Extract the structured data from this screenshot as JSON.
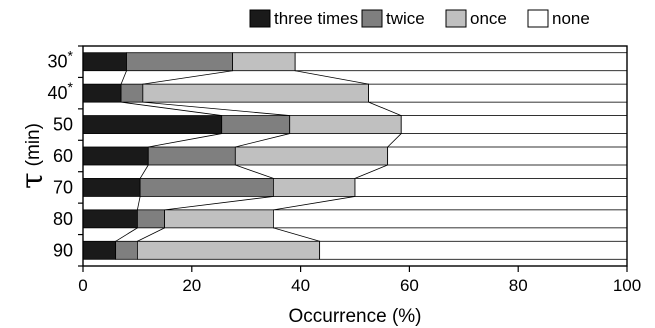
{
  "chart_data": {
    "type": "bar",
    "orientation": "horizontal",
    "stacked": true,
    "categories": [
      "30*",
      "40*",
      "50",
      "60",
      "70",
      "80",
      "90"
    ],
    "series": [
      {
        "name": "three times",
        "color": "#1a1a1a",
        "values": [
          8,
          7,
          25.5,
          12,
          10.5,
          10,
          6
        ]
      },
      {
        "name": "twice",
        "color": "#7f7f7f",
        "values": [
          19.5,
          4,
          12.5,
          16,
          24.5,
          5,
          4
        ]
      },
      {
        "name": "once",
        "color": "#c0c0c0",
        "values": [
          11.5,
          41.5,
          20.5,
          28,
          15,
          20,
          33.5
        ]
      },
      {
        "name": "none",
        "color": "#ffffff",
        "values": [
          61,
          47.5,
          41.5,
          44,
          50,
          65,
          56.5
        ]
      }
    ],
    "xlabel": "Occurrence (%)",
    "ylabel_symbol": "τ",
    "ylabel_unit": "(min)",
    "xlim": [
      0,
      100
    ],
    "xticks": [
      0,
      20,
      40,
      60,
      80,
      100
    ],
    "grid": false,
    "legend_position": "top-right",
    "connector_lines": true
  }
}
